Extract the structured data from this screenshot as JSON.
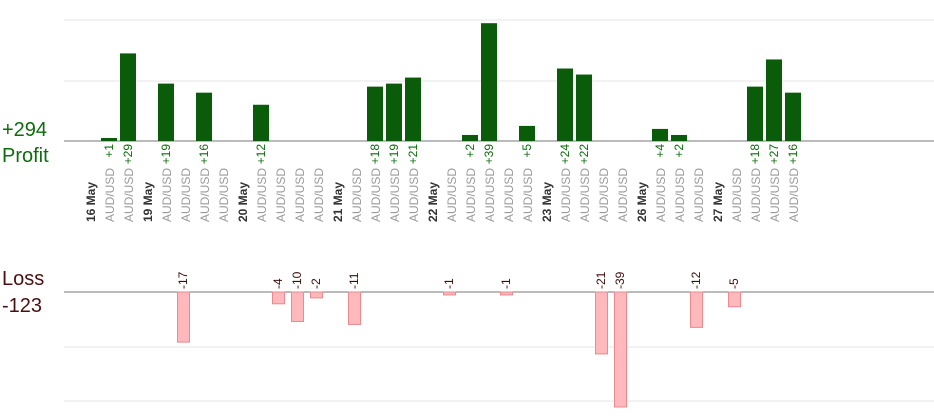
{
  "summary": {
    "profit_total": "+294",
    "profit_label": "Profit",
    "loss_label": "Loss",
    "loss_total": "-123"
  },
  "colors": {
    "profit_bar": "#0a5c0a",
    "profit_text": "#0e6b0e",
    "loss_fill": "#ffb8bb",
    "loss_stroke": "#e88a8e",
    "loss_text": "#3a0d0d",
    "grid": "#e6e6e6",
    "axis": "#777777",
    "tick_text": "#9a9a9a",
    "date_text": "#333333"
  },
  "chart_data": {
    "type": "bar",
    "description_words": "profit bars above axis, loss bars below axis",
    "profit_ylim": [
      0,
      48
    ],
    "loss_ylim": [
      0,
      39
    ],
    "categories": [
      {
        "date": "16 May",
        "pairs": [
          {
            "pair": "AUD/USD",
            "profit": "+1",
            "value": 1
          },
          {
            "pair": "AUD/USD",
            "profit": "+29",
            "value": 29
          }
        ]
      },
      {
        "date": "19 May",
        "pairs": [
          {
            "pair": "AUD/USD",
            "profit": "+19",
            "value": 19
          },
          {
            "pair": "AUD/USD",
            "loss": "-17",
            "value": -17
          },
          {
            "pair": "AUD/USD",
            "profit": "+16",
            "value": 16
          },
          {
            "pair": "AUD/USD"
          }
        ]
      },
      {
        "date": "20 May",
        "pairs": [
          {
            "pair": "AUD/USD",
            "profit": "+12",
            "value": 12
          },
          {
            "pair": "AUD/USD",
            "loss": "-4",
            "value": -4
          },
          {
            "pair": "AUD/USD",
            "loss": "-10",
            "value": -10
          },
          {
            "pair": "AUD/USD",
            "loss": "-2",
            "value": -2
          }
        ]
      },
      {
        "date": "21 May",
        "pairs": [
          {
            "pair": "AUD/USD",
            "loss": "-11",
            "value": -11
          },
          {
            "pair": "AUD/USD",
            "profit": "+18",
            "value": 18
          },
          {
            "pair": "AUD/USD",
            "profit": "+19",
            "value": 19
          },
          {
            "pair": "AUD/USD",
            "profit": "+21",
            "value": 21
          }
        ]
      },
      {
        "date": "22 May",
        "pairs": [
          {
            "pair": "AUD/USD",
            "loss": "-1",
            "value": -1
          },
          {
            "pair": "AUD/USD",
            "profit": "+2",
            "value": 2
          },
          {
            "pair": "AUD/USD",
            "profit": "+39",
            "value": 39
          },
          {
            "pair": "AUD/USD",
            "loss": "-1",
            "value": -1
          },
          {
            "pair": "AUD/USD",
            "profit": "+5",
            "value": 5
          }
        ]
      },
      {
        "date": "23 May",
        "pairs": [
          {
            "pair": "AUD/USD",
            "profit": "+24",
            "value": 24
          },
          {
            "pair": "AUD/USD",
            "profit": "+22",
            "value": 22
          },
          {
            "pair": "AUD/USD",
            "loss": "-21",
            "value": -21
          },
          {
            "pair": "AUD/USD",
            "loss": "-39",
            "value": -39
          }
        ]
      },
      {
        "date": "26 May",
        "pairs": [
          {
            "pair": "AUD/USD",
            "profit": "+4",
            "value": 4
          },
          {
            "pair": "AUD/USD",
            "profit": "+2",
            "value": 2
          },
          {
            "pair": "AUD/USD",
            "loss": "-12",
            "value": -12
          }
        ]
      },
      {
        "date": "27 May",
        "pairs": [
          {
            "pair": "AUD/USD",
            "loss": "-5",
            "value": -5
          },
          {
            "pair": "AUD/USD",
            "profit": "+18",
            "value": 18
          },
          {
            "pair": "AUD/USD",
            "profit": "+27",
            "value": 27
          },
          {
            "pair": "AUD/USD",
            "profit": "+16",
            "value": 16
          }
        ]
      }
    ]
  }
}
